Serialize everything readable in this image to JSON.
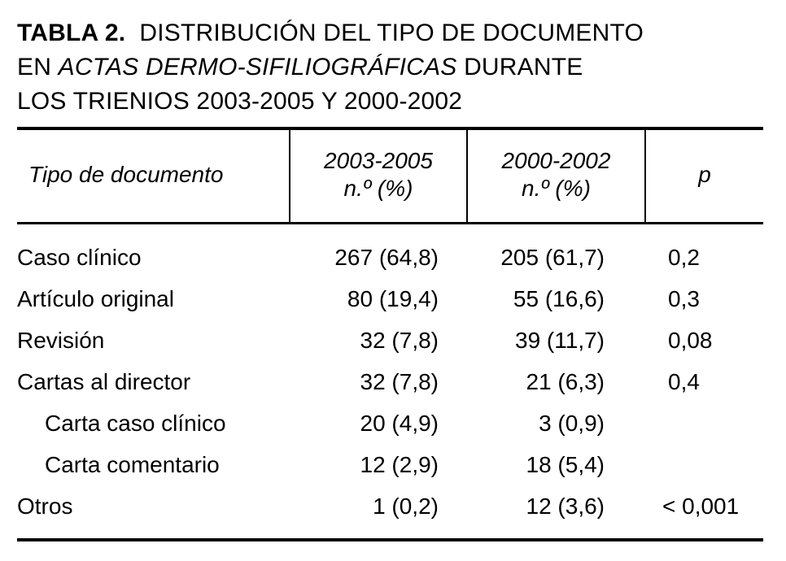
{
  "caption": {
    "label": "TABLA 2.",
    "line1": "DISTRIBUCIÓN DEL TIPO DE DOCUMENTO",
    "line2_prefix": "EN ",
    "line2_journal": "ACTAS DERMO-SIFILIOGRÁFICAS",
    "line2_suffix": " DURANTE",
    "line3": "LOS TRIENIOS 2003-2005 Y 2000-2002"
  },
  "table": {
    "headers": {
      "type": "Tipo de documento",
      "col1_line1": "2003-2005",
      "col1_line2": "n.º (%)",
      "col2_line1": "2000-2002",
      "col2_line2": "n.º (%)",
      "p": "p"
    },
    "rows": [
      {
        "type": "Caso clínico",
        "a": "267 (64,8)",
        "b": "205 (61,7)",
        "p": "0,2"
      },
      {
        "type": "Artículo original",
        "a": "80 (19,4)",
        "b": "55 (16,6)",
        "p": "0,3"
      },
      {
        "type": "Revisión",
        "a": "32 (7,8)",
        "b": "39 (11,7)",
        "p": "0,08"
      },
      {
        "type": "Cartas al director",
        "a": "32 (7,8)",
        "b": "21 (6,3)",
        "p": "0,4"
      },
      {
        "type": "Carta caso clínico",
        "a": "20 (4,9)",
        "b": "3 (0,9)",
        "p": ""
      },
      {
        "type": "Carta comentario",
        "a": "12 (2,9)",
        "b": "18 (5,4)",
        "p": ""
      },
      {
        "type": "Otros",
        "a": "1 (0,2)",
        "b": "12 (3,6)",
        "p": "< 0,001"
      }
    ]
  }
}
